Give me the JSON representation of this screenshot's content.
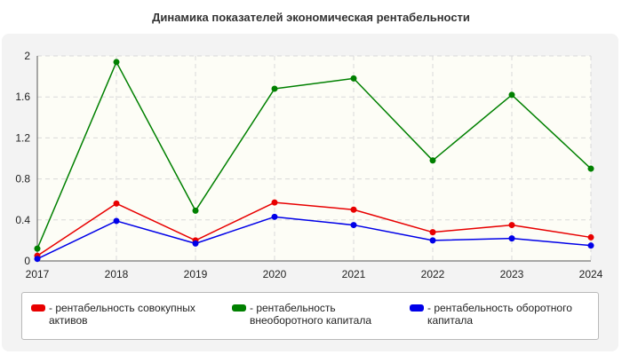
{
  "chart_data": {
    "type": "line",
    "title": "Динамика показателей экономическая рентабельности",
    "x": [
      "2017",
      "2018",
      "2019",
      "2020",
      "2021",
      "2022",
      "2023",
      "2024"
    ],
    "ylim": [
      0,
      2
    ],
    "yticks": [
      "0",
      "0.4",
      "0.8",
      "1.2",
      "1.6",
      "2"
    ],
    "grid": true,
    "legend_position": "bottom",
    "series": [
      {
        "name": "- рентабельность совокупных активов",
        "color": "#e80000",
        "values": [
          0.05,
          0.56,
          0.2,
          0.57,
          0.5,
          0.28,
          0.35,
          0.23
        ]
      },
      {
        "name": "- рентабельность внеоборотного капитала",
        "color": "#008000",
        "values": [
          0.12,
          1.94,
          0.49,
          1.68,
          1.78,
          0.98,
          1.62,
          0.9
        ]
      },
      {
        "name": "- рентабельность оборотного капитала",
        "color": "#0000e8",
        "values": [
          0.02,
          0.39,
          0.17,
          0.43,
          0.35,
          0.2,
          0.22,
          0.15
        ]
      }
    ]
  }
}
